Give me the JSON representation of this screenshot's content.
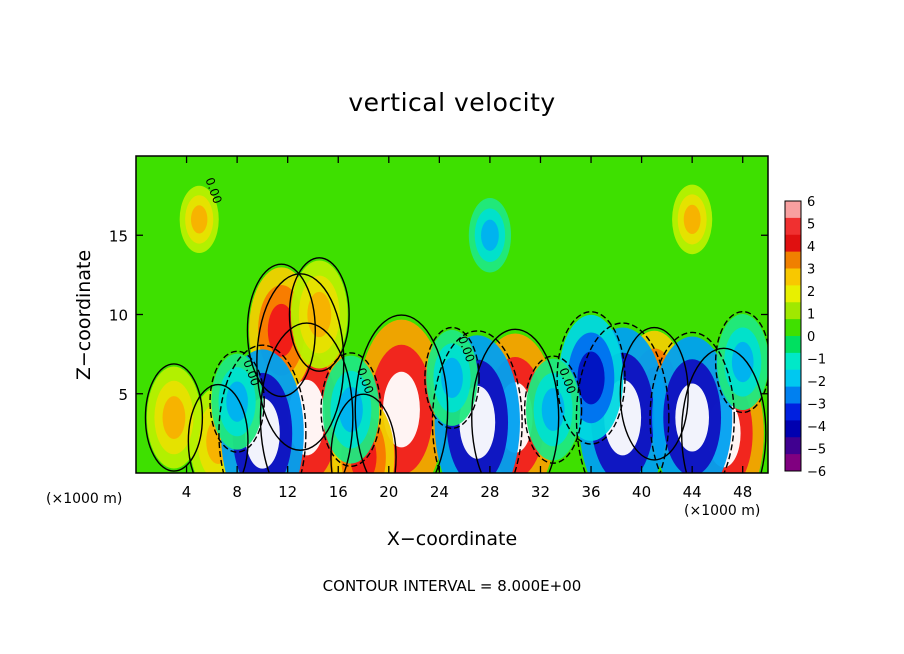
{
  "chart_data": {
    "type": "heatmap",
    "title": "vertical velocity",
    "xlabel": "X−coordinate",
    "ylabel": "Z−coordinate",
    "x_unit_label": "(×1000 m)",
    "x_ticks": [
      4,
      8,
      12,
      16,
      20,
      24,
      28,
      32,
      36,
      40,
      44,
      48
    ],
    "y_ticks": [
      5,
      10,
      15
    ],
    "xlim": [
      0,
      50
    ],
    "ylim": [
      0,
      20
    ],
    "colorbar": {
      "ticks": [
        "6",
        "5",
        "4",
        "3",
        "2",
        "1",
        "0",
        "−1",
        "−2",
        "−3",
        "−4",
        "−5",
        "−6"
      ],
      "colors": [
        "#f8a0a0",
        "#f03030",
        "#e01010",
        "#f08000",
        "#f8c800",
        "#e8f000",
        "#a0e800",
        "#40e000",
        "#00e060",
        "#00e8c8",
        "#00c8f0",
        "#0080f0",
        "#0020e0",
        "#0000b0",
        "#400090",
        "#800080"
      ]
    },
    "contour_labels": [
      "0.00",
      "0.00",
      "0.00",
      "0.00",
      "0.00"
    ],
    "cells": [
      {
        "x": 13,
        "z": 7,
        "w": 0.9
      },
      {
        "x": 13.5,
        "z": 3.5,
        "w": 1.0
      },
      {
        "x": 11.5,
        "z": 9,
        "w": 0.55
      },
      {
        "x": 14.5,
        "z": 10,
        "w": 0.4
      },
      {
        "x": 21,
        "z": 4,
        "w": 1.0
      },
      {
        "x": 30,
        "z": 3.5,
        "w": 0.9
      },
      {
        "x": 46.5,
        "z": 2.5,
        "w": 0.85
      },
      {
        "x": 6.5,
        "z": 2,
        "w": 0.4
      },
      {
        "x": 3,
        "z": 3.5,
        "w": 0.35
      },
      {
        "x": 18,
        "z": 1,
        "w": 0.5
      },
      {
        "x": 41,
        "z": 5,
        "w": 0.55
      },
      {
        "x": 10,
        "z": 2.5,
        "w": -0.9
      },
      {
        "x": 27,
        "z": 3.2,
        "w": -0.95
      },
      {
        "x": 38.5,
        "z": 3.5,
        "w": -1.0
      },
      {
        "x": 36,
        "z": 6,
        "w": -0.55
      },
      {
        "x": 44,
        "z": 3.5,
        "w": -0.85
      },
      {
        "x": 17,
        "z": 4,
        "w": -0.4
      },
      {
        "x": 25,
        "z": 6,
        "w": -0.3
      },
      {
        "x": 8,
        "z": 4.5,
        "w": -0.3
      },
      {
        "x": 33,
        "z": 4,
        "w": -0.35
      },
      {
        "x": 48,
        "z": 7,
        "w": -0.3
      },
      {
        "x": 28,
        "z": 15,
        "w": -0.12
      },
      {
        "x": 44,
        "z": 16,
        "w": 0.08
      },
      {
        "x": 5,
        "z": 16,
        "w": 0.06
      }
    ]
  },
  "footer": {
    "contour_interval": "CONTOUR INTERVAL = 8.000E+00"
  }
}
